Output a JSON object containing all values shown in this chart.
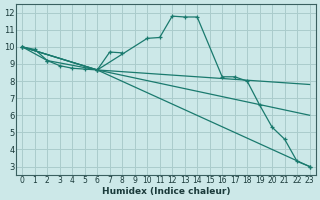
{
  "background_color": "#cce8e8",
  "grid_color": "#aacccc",
  "line_color": "#1a7a6e",
  "xlabel": "Humidex (Indice chaleur)",
  "xlim": [
    -0.5,
    23.5
  ],
  "ylim": [
    2.5,
    12.5
  ],
  "yticks": [
    3,
    4,
    5,
    6,
    7,
    8,
    9,
    10,
    11,
    12
  ],
  "xticks": [
    0,
    1,
    2,
    3,
    4,
    5,
    6,
    7,
    8,
    9,
    10,
    11,
    12,
    13,
    14,
    15,
    16,
    17,
    18,
    19,
    20,
    21,
    22,
    23
  ],
  "lines": [
    {
      "x": [
        0,
        2,
        6,
        10,
        11,
        12,
        13,
        14,
        16,
        17,
        18,
        19,
        20,
        21,
        22,
        23
      ],
      "y": [
        10.0,
        9.2,
        8.65,
        10.5,
        10.55,
        11.8,
        11.75,
        11.75,
        8.25,
        8.25,
        8.0,
        6.6,
        5.3,
        4.6,
        3.3,
        3.0
      ],
      "marker": true
    },
    {
      "x": [
        0,
        1,
        2,
        3,
        4,
        5,
        6,
        7,
        8
      ],
      "y": [
        10.0,
        9.85,
        9.2,
        8.9,
        8.75,
        8.7,
        8.65,
        9.7,
        9.65
      ],
      "marker": true
    },
    {
      "x": [
        0,
        6,
        23
      ],
      "y": [
        10.0,
        8.65,
        7.8
      ],
      "marker": false
    },
    {
      "x": [
        0,
        6,
        23
      ],
      "y": [
        10.0,
        8.65,
        6.0
      ],
      "marker": false
    },
    {
      "x": [
        0,
        6,
        23
      ],
      "y": [
        10.0,
        8.65,
        3.0
      ],
      "marker": true
    }
  ]
}
